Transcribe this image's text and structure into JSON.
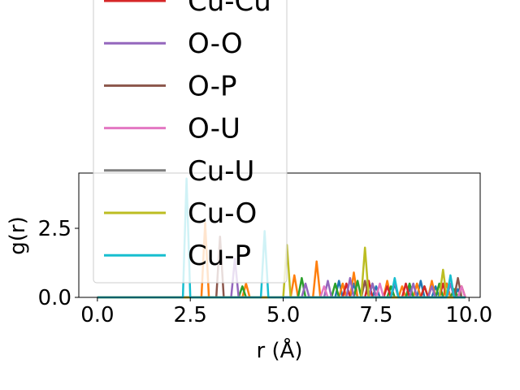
{
  "chart_data": {
    "type": "line",
    "title": "",
    "xlabel": "r (Å)",
    "ylabel": "g(r)",
    "xlim": [
      -0.5,
      10.3
    ],
    "ylim": [
      0.0,
      4.5
    ],
    "xticks": [
      0.0,
      2.5,
      5.0,
      7.5,
      10.0
    ],
    "xtick_labels": [
      "0.0",
      "2.5",
      "5.0",
      "7.5",
      "10.0"
    ],
    "yticks": [
      0.0,
      2.5
    ],
    "ytick_labels": [
      "0.0",
      "2.5"
    ],
    "grid": false,
    "legend_placement": "upper-left (overflowing above plot)",
    "x": [
      0.0,
      0.5,
      1.0,
      1.5,
      2.0,
      2.1,
      2.2,
      2.3,
      2.4,
      2.5,
      2.6,
      2.7,
      2.8,
      2.9,
      3.0,
      3.1,
      3.2,
      3.3,
      3.4,
      3.5,
      3.6,
      3.7,
      3.8,
      3.9,
      4.0,
      4.1,
      4.2,
      4.3,
      4.4,
      4.5,
      4.6,
      4.7,
      4.8,
      4.9,
      5.0,
      5.1,
      5.2,
      5.3,
      5.4,
      5.5,
      5.6,
      5.7,
      5.8,
      5.9,
      6.0,
      6.1,
      6.2,
      6.3,
      6.4,
      6.5,
      6.6,
      6.7,
      6.8,
      6.9,
      7.0,
      7.1,
      7.2,
      7.3,
      7.4,
      7.5,
      7.6,
      7.7,
      7.8,
      7.9,
      8.0,
      8.1,
      8.2,
      8.3,
      8.4,
      8.5,
      8.6,
      8.7,
      8.8,
      8.9,
      9.0,
      9.1,
      9.2,
      9.3,
      9.4,
      9.5,
      9.6,
      9.7,
      9.8,
      9.9
    ],
    "series": [
      {
        "name": "",
        "color": "#1f77b4",
        "values": [
          0,
          0,
          0,
          0,
          0,
          0,
          0,
          0,
          0,
          0,
          0,
          0,
          0,
          0,
          0,
          0,
          0,
          0,
          0,
          0,
          0,
          0,
          0,
          0,
          0,
          0,
          0,
          0,
          0,
          0,
          0,
          0,
          0,
          0,
          0,
          0,
          0,
          0,
          0,
          0,
          0,
          0,
          0,
          0,
          0,
          0,
          0,
          0,
          0,
          0.6,
          0,
          0,
          0,
          0.5,
          0,
          0,
          0,
          0,
          0,
          0.4,
          0,
          0,
          0,
          0,
          0.5,
          0,
          0,
          0,
          0.3,
          0,
          0,
          0.6,
          0,
          0,
          0,
          0.4,
          0,
          0,
          0.5,
          0,
          0,
          0.3,
          0,
          0
        ]
      },
      {
        "name": "",
        "color": "#ff7f0e",
        "values": [
          0,
          0,
          0,
          0,
          0,
          0,
          0,
          0,
          0,
          0,
          0,
          0,
          0,
          2.7,
          0,
          0,
          0,
          0,
          0,
          0,
          0,
          0,
          0,
          0,
          0.5,
          0,
          0,
          0,
          0,
          0,
          0,
          0,
          0,
          0,
          0,
          0,
          0,
          0.8,
          0,
          0,
          0,
          0,
          0,
          1.3,
          0,
          0,
          0,
          0,
          0,
          0,
          0.5,
          0,
          0,
          0.9,
          0,
          0,
          0,
          0,
          0,
          0,
          0,
          0,
          0.6,
          0,
          0,
          0,
          0.4,
          0,
          0,
          0,
          0.5,
          0,
          0,
          0,
          0.6,
          0,
          0,
          0,
          0.5,
          0,
          0,
          0,
          0.4,
          0
        ]
      },
      {
        "name": "",
        "color": "#2ca02c",
        "values": [
          0,
          0,
          0,
          0,
          0,
          0,
          0,
          0,
          0,
          0,
          0,
          0,
          0,
          0,
          0,
          0,
          0,
          0,
          0,
          0,
          0,
          0,
          0,
          0.4,
          0,
          0,
          0,
          0,
          0,
          0,
          0,
          0,
          0,
          0,
          0,
          0,
          0,
          0,
          0,
          0.7,
          0,
          0,
          0,
          0,
          0,
          0,
          0,
          0,
          0.5,
          0,
          0,
          0,
          0,
          0,
          0.6,
          0,
          0,
          0,
          0.5,
          0,
          0,
          0,
          0,
          0.4,
          0,
          0,
          0,
          0,
          0.5,
          0,
          0,
          0,
          0.4,
          0,
          0,
          0,
          0.5,
          0,
          0,
          0,
          0.3,
          0,
          0,
          0
        ]
      },
      {
        "name": "Cu-Cu",
        "color": "#d62728",
        "values": [
          0,
          0,
          0,
          0,
          0,
          0,
          0,
          0,
          0,
          0,
          0,
          0,
          0,
          0,
          0,
          0,
          0,
          0,
          0,
          0,
          0,
          0,
          0,
          0,
          0,
          0,
          0,
          0,
          0,
          0,
          0,
          0,
          0,
          0,
          0,
          0,
          0,
          0,
          0,
          0,
          0,
          0,
          0,
          0,
          0,
          0,
          0,
          0,
          0,
          0,
          0,
          0.5,
          0,
          0,
          0,
          0,
          0,
          0.6,
          0,
          0,
          0,
          0,
          0.4,
          0,
          0,
          0,
          0,
          0.5,
          0,
          0,
          0,
          0,
          0.4,
          0,
          0,
          0,
          0,
          0.5,
          0,
          0,
          0,
          0,
          0.4,
          0
        ]
      },
      {
        "name": "O-O",
        "color": "#9467bd",
        "values": [
          0,
          0,
          0,
          0,
          0,
          0,
          0,
          0,
          0,
          0,
          0,
          0,
          0,
          0,
          0,
          0,
          0,
          0,
          0,
          0,
          0,
          1.4,
          0,
          0,
          0,
          0,
          0,
          0,
          0,
          0,
          0,
          0,
          0,
          0,
          0,
          0,
          0,
          0,
          0,
          0,
          0.5,
          0,
          0,
          0,
          0,
          0,
          0.6,
          0,
          0,
          0,
          0,
          0,
          0.7,
          0,
          0,
          0,
          0,
          0,
          0.5,
          0,
          0,
          0,
          0,
          0,
          0.6,
          0,
          0,
          0,
          0,
          0.5,
          0,
          0,
          0,
          0,
          0.4,
          0,
          0,
          0,
          0,
          0.5,
          0,
          0,
          0,
          0
        ]
      },
      {
        "name": "O-P",
        "color": "#8c564b",
        "values": [
          0,
          0,
          0,
          0,
          0,
          0,
          0,
          0,
          0,
          0,
          0,
          0,
          0,
          0,
          0,
          0,
          0,
          2.2,
          0,
          0,
          0,
          0,
          0,
          0,
          0,
          0,
          0,
          0,
          0,
          0,
          0,
          0,
          0,
          0,
          0,
          0,
          0,
          0,
          0,
          0,
          0,
          0,
          0,
          0,
          0,
          0,
          0,
          0,
          0,
          0,
          0,
          0,
          0,
          0,
          0,
          0,
          0.6,
          0,
          0,
          0,
          0,
          0,
          0,
          0,
          0,
          0,
          0,
          0,
          0,
          0,
          0,
          0,
          0,
          0,
          0,
          0,
          0,
          0,
          0,
          0,
          0,
          0.7,
          0,
          0
        ]
      },
      {
        "name": "O-U",
        "color": "#e377c2",
        "values": [
          0,
          0,
          0,
          0,
          0,
          0,
          0,
          0,
          0,
          0,
          0,
          0,
          0,
          0,
          0,
          0,
          0,
          0,
          0,
          0,
          0,
          0,
          0,
          0,
          0,
          0,
          0,
          0,
          0,
          0,
          0,
          0,
          0,
          0,
          0,
          0,
          0,
          0,
          0,
          0,
          0,
          0,
          0,
          0,
          0,
          0.4,
          0,
          0,
          0,
          0,
          0,
          0,
          0,
          0,
          0,
          0,
          0,
          0,
          0,
          0,
          0.5,
          0,
          0,
          0,
          0,
          0,
          0,
          0,
          0,
          0,
          0,
          0,
          0,
          0,
          0,
          0,
          0,
          0,
          0,
          0,
          0,
          0,
          0.4,
          0
        ]
      },
      {
        "name": "Cu-U",
        "color": "#7f7f7f",
        "values": [
          0,
          0,
          0,
          0,
          0,
          0,
          0,
          0,
          0,
          0,
          0,
          0,
          0,
          0,
          0,
          0,
          0,
          0,
          0,
          0,
          0,
          0,
          0,
          0,
          0,
          0,
          0,
          0,
          0,
          0,
          0,
          0,
          0,
          0,
          0,
          0,
          0,
          0,
          0,
          0,
          0,
          0,
          0,
          0,
          0,
          0,
          0,
          0,
          0,
          0,
          0,
          0,
          0,
          0,
          0,
          0,
          0,
          0,
          0,
          0,
          0,
          0,
          0,
          0,
          0,
          0,
          0,
          0,
          0,
          0,
          0,
          0,
          0,
          0,
          0,
          0,
          0,
          0,
          0,
          0,
          0,
          0,
          0,
          0
        ]
      },
      {
        "name": "Cu-O",
        "color": "#bcbd22",
        "values": [
          0,
          0,
          0,
          0,
          0,
          0,
          0,
          0,
          0,
          0,
          0,
          0,
          0,
          0,
          0,
          0,
          0,
          0,
          0,
          0,
          0,
          0,
          0,
          0,
          0,
          0,
          0,
          0,
          0,
          0,
          0,
          0,
          0,
          0,
          0,
          1.9,
          0,
          0,
          0,
          0,
          0,
          0,
          0,
          0,
          0,
          0,
          0,
          0,
          0,
          0,
          0,
          0,
          0,
          0,
          0,
          0,
          1.8,
          0,
          0,
          0,
          0,
          0,
          0,
          0,
          0,
          0,
          0,
          0,
          0,
          0,
          0,
          0,
          0,
          0,
          0,
          0,
          0,
          1.0,
          0,
          0,
          0,
          0,
          0,
          0
        ]
      },
      {
        "name": "Cu-P",
        "color": "#17becf",
        "values": [
          0,
          0,
          0,
          0,
          0,
          0,
          0,
          0,
          4.3,
          0,
          0,
          0,
          0,
          0,
          0,
          0,
          0,
          0,
          0,
          0,
          0,
          0,
          0,
          0,
          0,
          0,
          0,
          0,
          0,
          2.4,
          0,
          0,
          0,
          0,
          0,
          0,
          0,
          0,
          0,
          0,
          0,
          0,
          0,
          0,
          0,
          0,
          0,
          0,
          0,
          0,
          0,
          0,
          0,
          0,
          0,
          0,
          0,
          0,
          0,
          0,
          0,
          0,
          0,
          0,
          0.7,
          0,
          0,
          0,
          0,
          0,
          0,
          0,
          0,
          0,
          0,
          0,
          0,
          0,
          0,
          0.8,
          0,
          0,
          0,
          0
        ]
      }
    ],
    "legend_entries": [
      "Cu-Cu",
      "O-O",
      "O-P",
      "O-U",
      "Cu-U",
      "Cu-O",
      "Cu-P"
    ]
  }
}
